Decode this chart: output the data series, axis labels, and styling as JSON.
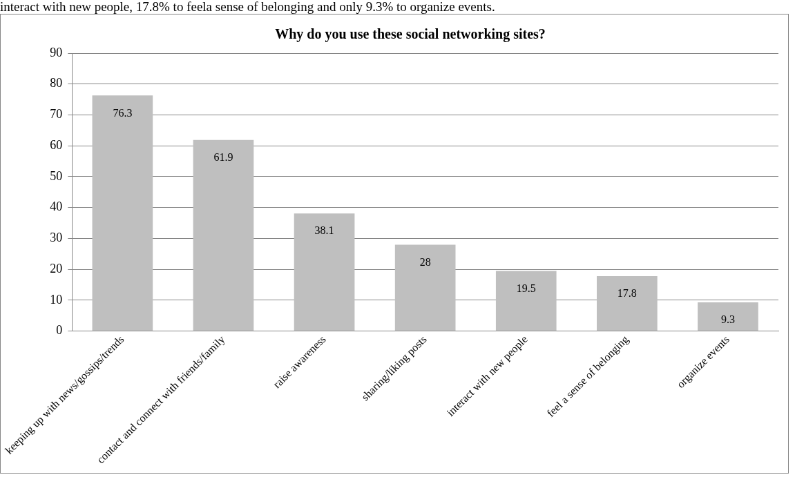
{
  "chart_data": {
    "type": "bar",
    "title": "Why do you use these social networking sites?",
    "categories": [
      "keeping up with news/gossips/trends",
      "contact and connect with friends/family",
      "raise awareness",
      "sharing/liking posts",
      "interact with new people",
      "feel a sense of belonging",
      "organize events"
    ],
    "values": [
      76.3,
      61.9,
      38.1,
      28,
      19.5,
      17.8,
      9.3
    ],
    "color": "#bfbfbf",
    "ylim": [
      0,
      90
    ],
    "yticks": [
      0,
      10,
      20,
      30,
      40,
      50,
      60,
      70,
      80,
      90
    ],
    "grid": "y",
    "legend": false,
    "data_labels": true,
    "annotations": [
      "interact with new people, 17.8% to feela sense of belonging and only 9.3% to organize events."
    ]
  }
}
